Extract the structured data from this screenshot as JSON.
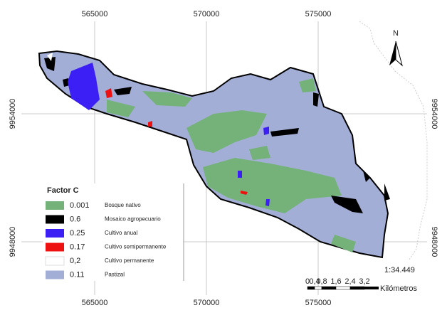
{
  "map": {
    "grid_labels": {
      "top": [
        "565000",
        "570000",
        "575000"
      ],
      "bottom": [
        "565000",
        "570000",
        "575000"
      ],
      "left": [
        "9954000",
        "9948000"
      ],
      "right": [
        "9954000",
        "9948000"
      ]
    },
    "north": "N",
    "legend": {
      "title": "Factor C",
      "items": [
        {
          "value": "0.001",
          "label": "Bosque nativo",
          "color": "#74b27a"
        },
        {
          "value": "0.6",
          "label": "Mosaico agropecuario",
          "color": "#000000"
        },
        {
          "value": "0.25",
          "label": "Cultivo anual",
          "color": "#3b1ff5"
        },
        {
          "value": "0.17",
          "label": "Cultivo semipermanente",
          "color": "#ee1111"
        },
        {
          "value": "0,2",
          "label": "Cultivo permanente",
          "color": "#ffffff"
        },
        {
          "value": "0.11",
          "label": "Pastizal",
          "color": "#a3aed6"
        }
      ]
    },
    "scale": "1:34.449",
    "scale_bar": {
      "ticks": [
        "0",
        "0,4",
        "0,8",
        "1,6",
        "2,4",
        "3,2"
      ],
      "unit": "Kilómetros"
    }
  }
}
